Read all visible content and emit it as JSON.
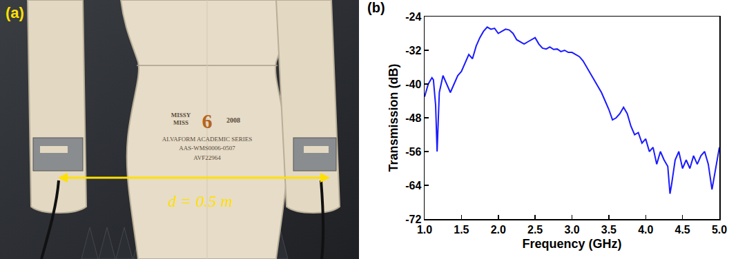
{
  "photo": {
    "panel_label": "(a)",
    "annotation": "d = 0.5 m",
    "mannequin_text": [
      "MISSY",
      "MISS",
      "6",
      "2008",
      "ALVAFORM ACADEMIC SERIES",
      "AAS-WMS0006-0507",
      "AVF22964"
    ]
  },
  "chart_data": {
    "type": "line",
    "panel_label": "(b)",
    "x_label": "Frequency (GHz)",
    "y_label": "Transmission (dB)",
    "x": [
      1.0,
      1.05,
      1.1,
      1.12,
      1.15,
      1.17,
      1.2,
      1.25,
      1.3,
      1.35,
      1.4,
      1.45,
      1.5,
      1.55,
      1.6,
      1.65,
      1.7,
      1.75,
      1.8,
      1.85,
      1.9,
      1.95,
      2.0,
      2.05,
      2.1,
      2.15,
      2.2,
      2.25,
      2.3,
      2.35,
      2.4,
      2.45,
      2.5,
      2.55,
      2.6,
      2.65,
      2.7,
      2.75,
      2.8,
      2.85,
      2.9,
      2.95,
      3.0,
      3.05,
      3.1,
      3.15,
      3.2,
      3.25,
      3.3,
      3.35,
      3.4,
      3.45,
      3.5,
      3.55,
      3.6,
      3.65,
      3.7,
      3.75,
      3.8,
      3.85,
      3.9,
      3.95,
      4.0,
      4.05,
      4.1,
      4.15,
      4.2,
      4.25,
      4.3,
      4.33,
      4.35,
      4.4,
      4.45,
      4.5,
      4.55,
      4.6,
      4.65,
      4.7,
      4.75,
      4.8,
      4.85,
      4.9,
      4.95,
      5.0
    ],
    "values": [
      -43,
      -40,
      -38.5,
      -39,
      -45,
      -56,
      -42,
      -38,
      -40,
      -42,
      -40,
      -38,
      -37,
      -35,
      -33,
      -34,
      -31,
      -29,
      -27.5,
      -26.5,
      -27,
      -26.8,
      -28,
      -27.5,
      -27,
      -27.2,
      -28,
      -29.5,
      -30,
      -30.5,
      -30,
      -29.5,
      -29,
      -30.5,
      -31.5,
      -31.7,
      -31.2,
      -31.8,
      -31.7,
      -32.3,
      -32,
      -32.5,
      -32.5,
      -33,
      -33.5,
      -34.5,
      -36,
      -37.5,
      -39,
      -40.5,
      -42,
      -44,
      -46,
      -48.5,
      -48,
      -47,
      -45.5,
      -47,
      -50,
      -52,
      -51.5,
      -54,
      -53,
      -56,
      -55,
      -59,
      -56,
      -58,
      -59.5,
      -66,
      -64,
      -58,
      -56,
      -60,
      -58,
      -60,
      -57,
      -59,
      -57,
      -56,
      -59,
      -65,
      -60,
      -55
    ],
    "color": "#1a1aff",
    "xlim": [
      1,
      5
    ],
    "ylim": [
      -72,
      -24
    ],
    "xticks": [
      {
        "value": 1,
        "label": "1.0"
      },
      {
        "value": 1.5,
        "label": "1.5"
      },
      {
        "value": 2,
        "label": "2.0"
      },
      {
        "value": 2.5,
        "label": "2.5"
      },
      {
        "value": 3,
        "label": "3.0"
      },
      {
        "value": 3.5,
        "label": "3.5"
      },
      {
        "value": 4,
        "label": "4.0"
      },
      {
        "value": 4.5,
        "label": "4.5"
      },
      {
        "value": 5,
        "label": "5.0"
      }
    ],
    "yticks": [
      -72,
      -64,
      -56,
      -48,
      -40,
      -32,
      -24
    ],
    "grid": false
  }
}
